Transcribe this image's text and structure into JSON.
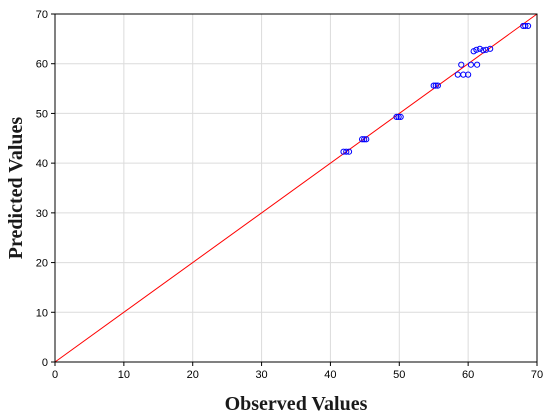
{
  "chart_data": {
    "type": "scatter",
    "title": "",
    "xlabel": "Observed Values",
    "ylabel": "Predicted Values",
    "xlim": [
      0,
      70
    ],
    "ylim": [
      0,
      70
    ],
    "x_ticks": [
      0,
      10,
      20,
      30,
      40,
      50,
      60,
      70
    ],
    "y_ticks": [
      0,
      10,
      20,
      30,
      40,
      50,
      60,
      70
    ],
    "grid": true,
    "reference_line": {
      "from": [
        0,
        0
      ],
      "to": [
        70,
        70
      ],
      "color": "#ff0000"
    },
    "marker_color": "#0000ff",
    "points": [
      [
        41.9,
        42.3
      ],
      [
        42.3,
        42.3
      ],
      [
        42.7,
        42.3
      ],
      [
        44.6,
        44.8
      ],
      [
        44.9,
        44.8
      ],
      [
        45.2,
        44.8
      ],
      [
        49.6,
        49.3
      ],
      [
        49.9,
        49.3
      ],
      [
        50.2,
        49.3
      ],
      [
        55.0,
        55.6
      ],
      [
        55.3,
        55.6
      ],
      [
        55.6,
        55.6
      ],
      [
        58.5,
        57.8
      ],
      [
        59.3,
        57.8
      ],
      [
        60.0,
        57.8
      ],
      [
        59.0,
        59.8
      ],
      [
        60.4,
        59.8
      ],
      [
        61.3,
        59.8
      ],
      [
        60.8,
        62.5
      ],
      [
        61.2,
        62.8
      ],
      [
        61.7,
        63.0
      ],
      [
        62.2,
        62.7
      ],
      [
        62.6,
        62.8
      ],
      [
        63.2,
        63.0
      ],
      [
        68.0,
        67.6
      ],
      [
        68.3,
        67.6
      ],
      [
        68.7,
        67.6
      ]
    ]
  }
}
